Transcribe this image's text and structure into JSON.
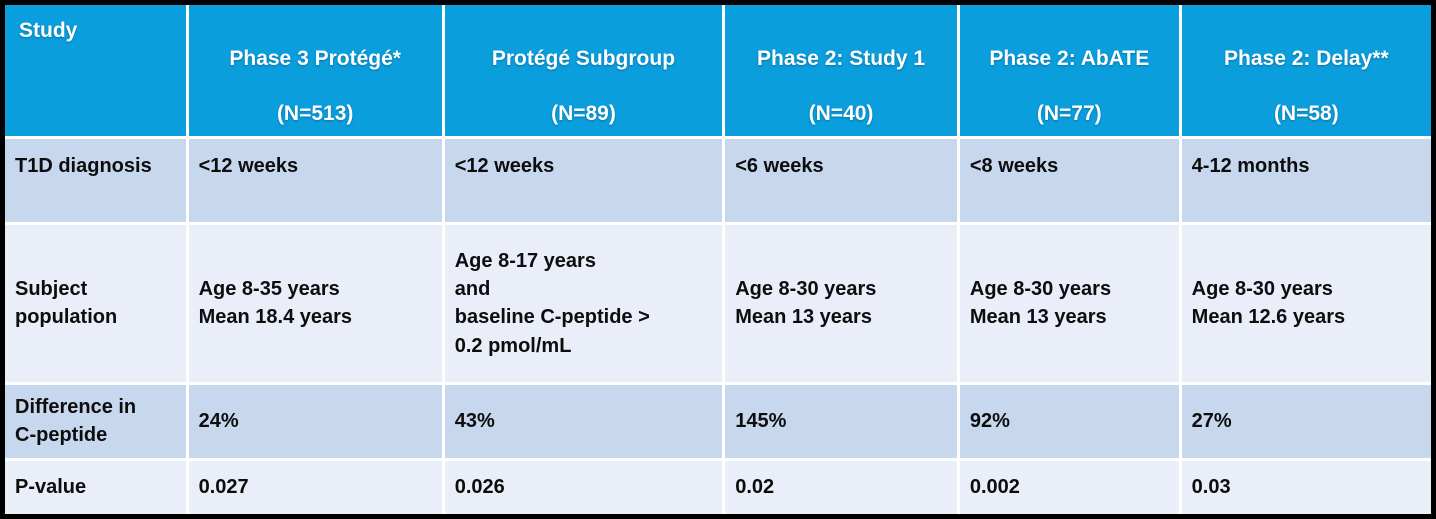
{
  "colors": {
    "header_bg": "#0a9edd",
    "header_text": "#ffffff",
    "band_dark": "#c7d8ee",
    "band_light": "#e9eef8",
    "grid": "#ffffff",
    "frame": "#000000",
    "body_text": "#0d0d0d"
  },
  "table": {
    "header": {
      "row_label": "Study",
      "columns": [
        {
          "title": "Phase 3 Protégé*",
          "n": "(N=513)"
        },
        {
          "title": "Protégé Subgroup",
          "n": "(N=89)"
        },
        {
          "title": "Phase 2: Study 1",
          "n": "(N=40)"
        },
        {
          "title": "Phase 2: AbATE",
          "n": "(N=77)"
        },
        {
          "title": "Phase 2: Delay**",
          "n": "(N=58)"
        }
      ]
    },
    "rows": [
      {
        "label": "T1D diagnosis",
        "cells": [
          "<12 weeks",
          "<12 weeks",
          "<6 weeks",
          "<8 weeks",
          "4-12 months"
        ]
      },
      {
        "label": "Subject\npopulation",
        "cells": [
          "Age 8-35 years\nMean 18.4 years",
          "Age 8-17 years\nand\nbaseline C-peptide >\n0.2 pmol/mL",
          "Age 8-30 years\nMean 13 years",
          "Age 8-30 years\nMean 13 years",
          "Age 8-30 years\nMean 12.6 years"
        ]
      },
      {
        "label": "Difference in\nC-peptide",
        "cells": [
          "24%",
          "43%",
          "145%",
          "92%",
          "27%"
        ]
      },
      {
        "label": "P-value",
        "cells": [
          "0.027",
          "0.026",
          "0.02",
          "0.002",
          "0.03"
        ]
      }
    ]
  }
}
